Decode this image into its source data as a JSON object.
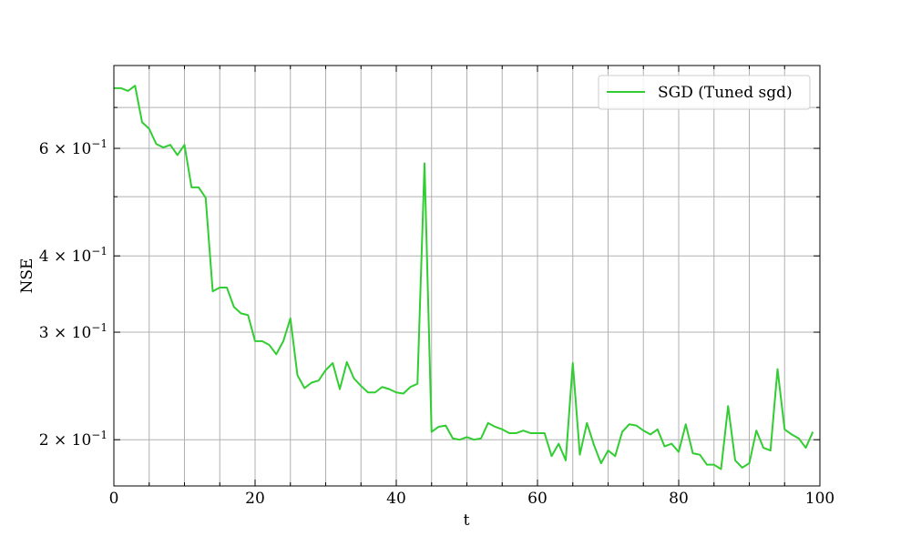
{
  "chart_data": {
    "type": "line",
    "xlabel": "t",
    "ylabel": "NSE",
    "xlim": [
      0,
      100
    ],
    "ylim": [
      0.168,
      0.82
    ],
    "yscale": "log",
    "grid": true,
    "legend_position": "top-right",
    "x_ticks": [
      0,
      20,
      40,
      60,
      80,
      100
    ],
    "x_tick_labels": [
      "0",
      "20",
      "40",
      "60",
      "80",
      "100"
    ],
    "y_ticks": [
      {
        "value": 0.2,
        "mantissa": "2",
        "base": "10",
        "exponent": "−1"
      },
      {
        "value": 0.3,
        "mantissa": "3",
        "base": "10",
        "exponent": "−1"
      },
      {
        "value": 0.4,
        "mantissa": "4",
        "base": "10",
        "exponent": "−1"
      },
      {
        "value": 0.6,
        "mantissa": "6",
        "base": "10",
        "exponent": "−1"
      }
    ],
    "y_unlabeled_ticks": [
      0.5,
      0.7
    ],
    "series": [
      {
        "name": "SGD (Tuned sgd)",
        "color": "#32cd32",
        "x": [
          0,
          1,
          2,
          3,
          4,
          5,
          6,
          7,
          8,
          9,
          10,
          11,
          12,
          13,
          14,
          15,
          16,
          17,
          18,
          19,
          20,
          21,
          22,
          23,
          24,
          25,
          26,
          27,
          28,
          29,
          30,
          31,
          32,
          33,
          34,
          35,
          36,
          37,
          38,
          39,
          40,
          41,
          42,
          43,
          44,
          45,
          46,
          47,
          48,
          49,
          50,
          51,
          52,
          53,
          54,
          55,
          56,
          57,
          58,
          59,
          60,
          61,
          62,
          63,
          64,
          65,
          66,
          67,
          68,
          69,
          70,
          71,
          72,
          73,
          74,
          75,
          76,
          77,
          78,
          79,
          80,
          81,
          82,
          83,
          84,
          85,
          86,
          87,
          88,
          89,
          90,
          91,
          92,
          93,
          94,
          95,
          96,
          97,
          98,
          99
        ],
        "values": [
          0.753,
          0.753,
          0.745,
          0.76,
          0.662,
          0.646,
          0.61,
          0.602,
          0.608,
          0.585,
          0.608,
          0.518,
          0.518,
          0.498,
          0.35,
          0.355,
          0.355,
          0.33,
          0.322,
          0.32,
          0.29,
          0.29,
          0.286,
          0.276,
          0.29,
          0.316,
          0.255,
          0.243,
          0.248,
          0.25,
          0.26,
          0.267,
          0.242,
          0.268,
          0.252,
          0.245,
          0.239,
          0.239,
          0.244,
          0.242,
          0.239,
          0.238,
          0.244,
          0.247,
          0.567,
          0.206,
          0.21,
          0.211,
          0.201,
          0.2,
          0.202,
          0.2,
          0.201,
          0.213,
          0.21,
          0.208,
          0.205,
          0.205,
          0.207,
          0.205,
          0.205,
          0.205,
          0.188,
          0.197,
          0.185,
          0.267,
          0.189,
          0.213,
          0.196,
          0.183,
          0.192,
          0.188,
          0.206,
          0.212,
          0.211,
          0.207,
          0.204,
          0.208,
          0.195,
          0.197,
          0.191,
          0.212,
          0.19,
          0.189,
          0.182,
          0.182,
          0.179,
          0.227,
          0.185,
          0.18,
          0.183,
          0.207,
          0.194,
          0.192,
          0.261,
          0.208,
          0.204,
          0.201,
          0.194,
          0.206
        ]
      }
    ]
  }
}
